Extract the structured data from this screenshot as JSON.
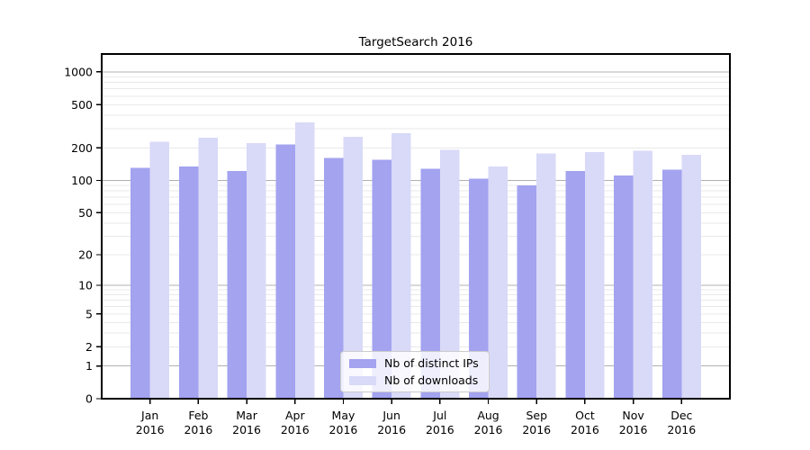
{
  "figure": {
    "background": "#ffffff"
  },
  "chart_data": {
    "type": "bar",
    "title": "TargetSearch 2016",
    "categories": [
      "Jan",
      "Feb",
      "Mar",
      "Apr",
      "May",
      "Jun",
      "Jul",
      "Aug",
      "Sep",
      "Oct",
      "Nov",
      "Dec"
    ],
    "year_label": "2016",
    "series": [
      {
        "name": "Nb of distinct IPs",
        "color": "#a3a3f0",
        "values": [
          131,
          134,
          122,
          215,
          161,
          156,
          128,
          104,
          90,
          122,
          111,
          126
        ]
      },
      {
        "name": "Nb of downloads",
        "color": "#d9d9f8",
        "values": [
          228,
          249,
          221,
          345,
          252,
          272,
          192,
          135,
          178,
          182,
          188,
          172
        ]
      }
    ],
    "yscale": "log1p",
    "yticks": [
      0,
      1,
      2,
      5,
      10,
      20,
      50,
      100,
      200,
      500,
      1000
    ],
    "ylim": [
      0,
      1500
    ],
    "grid": true,
    "legend_position": "lower center",
    "xlabel": "",
    "ylabel": ""
  },
  "colors": {
    "major_grid": "#b0b0b0",
    "minor_grid": "#e9e9e9",
    "axis": "#000000",
    "text": "#000000"
  }
}
